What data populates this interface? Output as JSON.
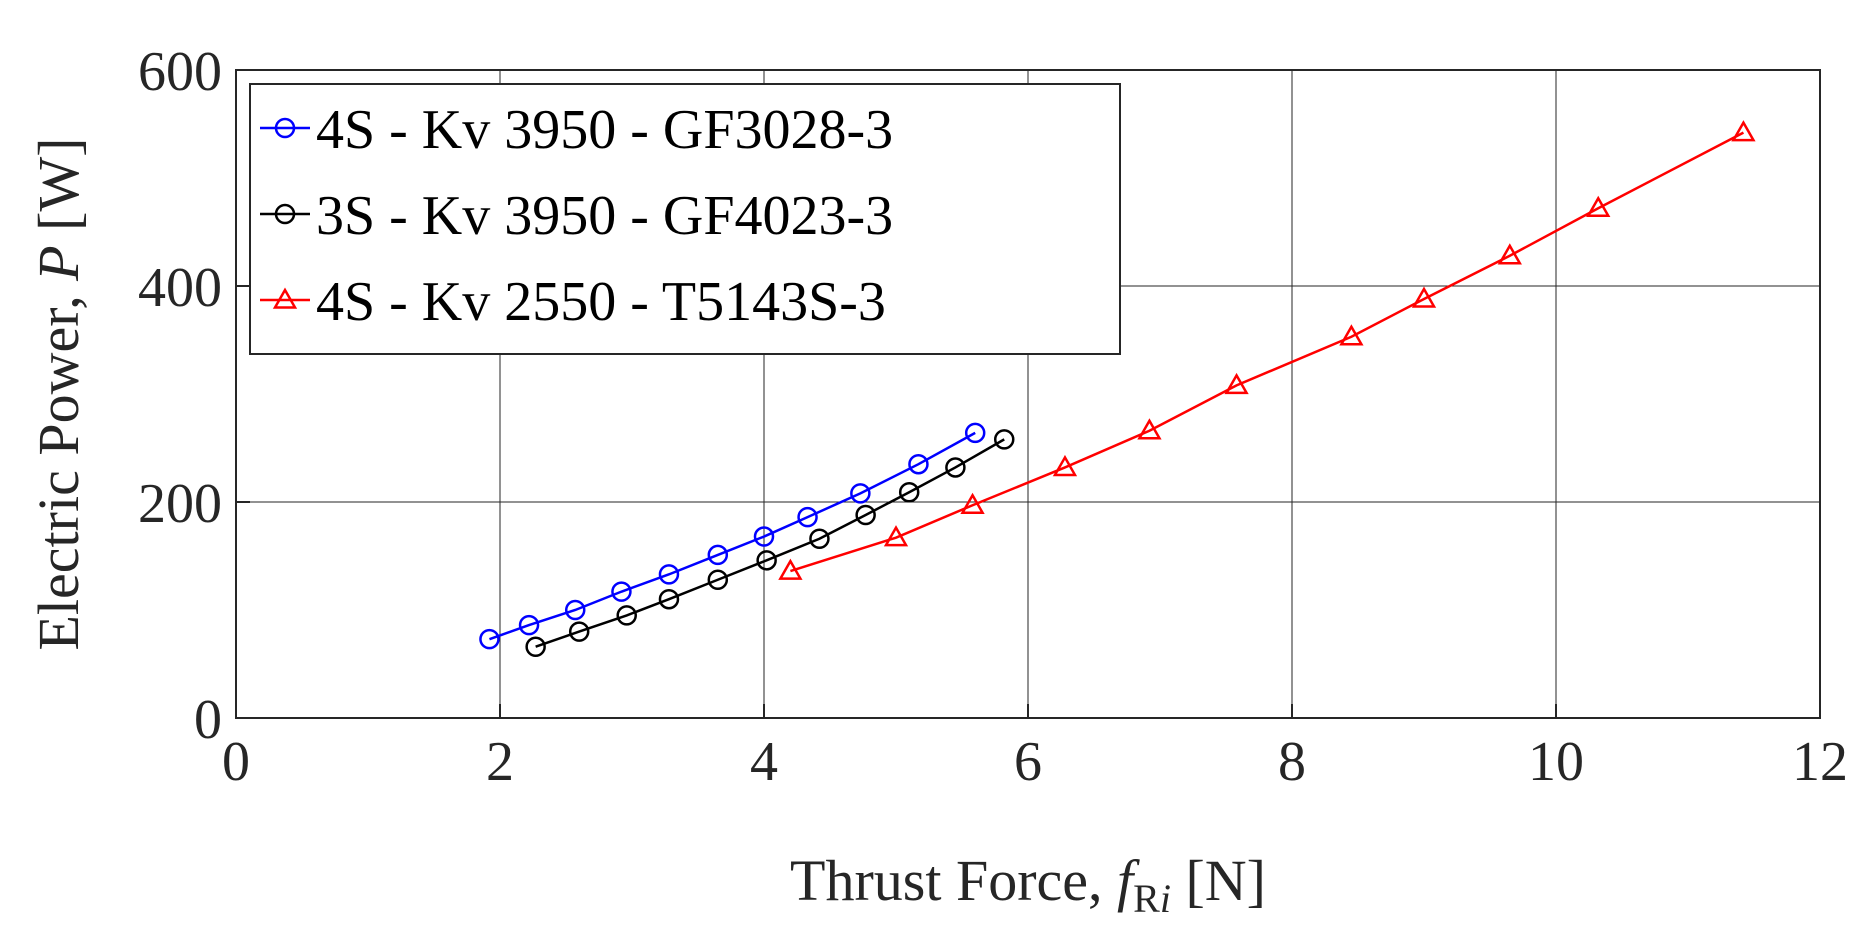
{
  "chart_data": {
    "type": "line",
    "xlabel_main": "Thrust  Force,",
    "xlabel_var": "f",
    "xlabel_sub": "R",
    "xlabel_sub_italic": "i",
    "xlabel_unit": "[N]",
    "ylabel_main": "Electric  Power,",
    "ylabel_var": "P",
    "ylabel_unit": "[W]",
    "xlim": [
      0,
      12
    ],
    "ylim": [
      0,
      600
    ],
    "x_ticks": [
      0,
      2,
      4,
      6,
      8,
      10,
      12
    ],
    "y_ticks": [
      0,
      200,
      400,
      600
    ],
    "grid": true,
    "legend_position": "top-left",
    "series": [
      {
        "name": "4S - Kv 3950 - GF3028-3",
        "color": "#0000ff",
        "marker": "circle",
        "x": [
          1.92,
          2.22,
          2.57,
          2.92,
          3.28,
          3.65,
          4.0,
          4.33,
          4.73,
          5.17,
          5.6
        ],
        "y": [
          73,
          86,
          100,
          117,
          133,
          151,
          168,
          186,
          208,
          235,
          264
        ]
      },
      {
        "name": "3S - Kv 3950 - GF4023-3",
        "color": "#000000",
        "marker": "circle",
        "x": [
          2.27,
          2.6,
          2.96,
          3.28,
          3.65,
          4.02,
          4.42,
          4.77,
          5.1,
          5.45,
          5.82
        ],
        "y": [
          66,
          80,
          95,
          110,
          128,
          146,
          166,
          188,
          209,
          232,
          258
        ]
      },
      {
        "name": "4S - Kv 2550 - T5143S-3",
        "color": "#ff0000",
        "marker": "triangle",
        "x": [
          4.2,
          5.0,
          5.58,
          6.28,
          6.92,
          7.58,
          8.45,
          9.0,
          9.65,
          10.32,
          11.42
        ],
        "y": [
          136,
          167,
          197,
          232,
          266,
          308,
          353,
          388,
          428,
          472,
          542
        ]
      }
    ]
  }
}
